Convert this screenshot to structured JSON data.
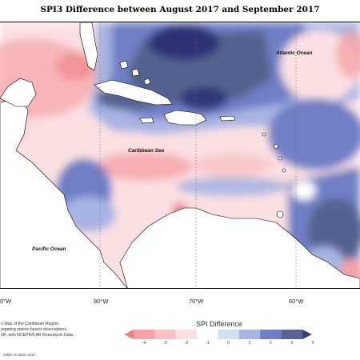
{
  "title": "SPI3 Difference between August 2017 and September 2017",
  "ocean_labels": {
    "atlantic": "Atlantic Ocean",
    "caribbean": "Caribbean Sea",
    "pacific": "Pacific Ocean"
  },
  "longitude_labels": [
    "0°W",
    "80°W",
    "70°W",
    "60°W"
  ],
  "credit_lines": [
    "n Map of the Caribbean Region.",
    "regating station based observations,",
    "OF, with NCEPINCAR Reanalysis Data."
  ],
  "cimh_text": "CIMH October-2017",
  "legend": {
    "title": "SPI Difference",
    "ticks": [
      "-4",
      "-3",
      "-2",
      "-1",
      "0",
      "1",
      "2",
      "3",
      "4"
    ],
    "colors": [
      "#f07f86",
      "#f5a3a8",
      "#f7c2c6",
      "#fbe0e2",
      "#ffffff",
      "#cfe0ee",
      "#a8b4e2",
      "#6f7fc6",
      "#5a6594",
      "#3b3f7a"
    ]
  },
  "colors": {
    "strong_wet": "#2f3374",
    "wet": "#54628f",
    "moderate_wet": "#6f7fc6",
    "light_wet": "#a8b4e2",
    "slight_wet": "#cfe0ee",
    "neutral": "#ffffff",
    "slight_dry": "#fbe0e2",
    "dry": "#f5a3a8",
    "strong_dry": "#f07f86"
  }
}
